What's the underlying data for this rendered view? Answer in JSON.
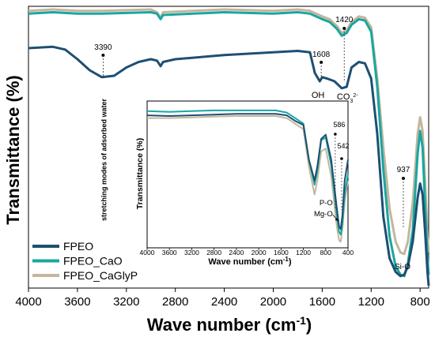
{
  "chart_data": [
    {
      "type": "line",
      "panel": "main",
      "xlabel": "Wave number (cm",
      "xlabel_sup": "-1",
      "xlabel_tail": ")",
      "ylabel": "Transmittance (%)",
      "xlim": [
        4000,
        730
      ],
      "x_reversed": true,
      "y_ticks_shown": false,
      "x_ticks": [
        4000,
        3600,
        3200,
        2800,
        2400,
        2000,
        1600,
        1200,
        800
      ],
      "x_tick_labels": [
        "4000",
        "3600",
        "3200",
        "2800",
        "2400",
        "2000",
        "1600",
        "1200",
        "800"
      ],
      "legend_position": "bottom-left",
      "series": [
        {
          "name": "FPEO",
          "color": "#1d4f73",
          "points": [
            [
              4000,
              0.86
            ],
            [
              3800,
              0.865
            ],
            [
              3700,
              0.855
            ],
            [
              3600,
              0.82
            ],
            [
              3500,
              0.78
            ],
            [
              3400,
              0.755
            ],
            [
              3300,
              0.76
            ],
            [
              3200,
              0.79
            ],
            [
              3100,
              0.81
            ],
            [
              3000,
              0.82
            ],
            [
              2950,
              0.815
            ],
            [
              2920,
              0.795
            ],
            [
              2900,
              0.81
            ],
            [
              2800,
              0.82
            ],
            [
              2400,
              0.835
            ],
            [
              2000,
              0.845
            ],
            [
              1800,
              0.85
            ],
            [
              1700,
              0.845
            ],
            [
              1660,
              0.77
            ],
            [
              1620,
              0.74
            ],
            [
              1600,
              0.755
            ],
            [
              1560,
              0.75
            ],
            [
              1500,
              0.74
            ],
            [
              1440,
              0.715
            ],
            [
              1400,
              0.72
            ],
            [
              1360,
              0.79
            ],
            [
              1300,
              0.81
            ],
            [
              1250,
              0.805
            ],
            [
              1200,
              0.75
            ],
            [
              1150,
              0.55
            ],
            [
              1100,
              0.25
            ],
            [
              1050,
              0.1
            ],
            [
              1000,
              0.05
            ],
            [
              960,
              0.035
            ],
            [
              930,
              0.04
            ],
            [
              900,
              0.07
            ],
            [
              860,
              0.16
            ],
            [
              820,
              0.32
            ],
            [
              800,
              0.37
            ],
            [
              780,
              0.33
            ],
            [
              760,
              0.2
            ],
            [
              740,
              0.05
            ],
            [
              730,
              0.0
            ]
          ]
        },
        {
          "name": "FPEO_CaO",
          "color": "#1aa6a0",
          "points": [
            [
              4000,
              0.985
            ],
            [
              3800,
              0.99
            ],
            [
              3600,
              0.985
            ],
            [
              3400,
              0.985
            ],
            [
              3000,
              0.99
            ],
            [
              2950,
              0.985
            ],
            [
              2920,
              0.965
            ],
            [
              2900,
              0.98
            ],
            [
              2400,
              0.99
            ],
            [
              2000,
              0.985
            ],
            [
              1800,
              0.99
            ],
            [
              1700,
              0.985
            ],
            [
              1600,
              0.965
            ],
            [
              1540,
              0.955
            ],
            [
              1480,
              0.93
            ],
            [
              1440,
              0.905
            ],
            [
              1400,
              0.915
            ],
            [
              1360,
              0.945
            ],
            [
              1300,
              0.965
            ],
            [
              1250,
              0.96
            ],
            [
              1200,
              0.92
            ],
            [
              1150,
              0.72
            ],
            [
              1100,
              0.42
            ],
            [
              1050,
              0.18
            ],
            [
              1000,
              0.07
            ],
            [
              960,
              0.04
            ],
            [
              930,
              0.035
            ],
            [
              900,
              0.08
            ],
            [
              860,
              0.2
            ],
            [
              820,
              0.48
            ],
            [
              800,
              0.56
            ],
            [
              780,
              0.5
            ],
            [
              760,
              0.3
            ],
            [
              740,
              0.1
            ],
            [
              730,
              0.04
            ]
          ]
        },
        {
          "name": "FPEO_CaGlyP",
          "color": "#c4b69c",
          "points": [
            [
              4000,
              0.995
            ],
            [
              3800,
              1.0
            ],
            [
              3600,
              0.995
            ],
            [
              3400,
              0.995
            ],
            [
              3000,
              1.0
            ],
            [
              2950,
              0.99
            ],
            [
              2920,
              0.97
            ],
            [
              2900,
              0.99
            ],
            [
              2400,
              1.0
            ],
            [
              2000,
              0.995
            ],
            [
              1800,
              1.0
            ],
            [
              1700,
              0.995
            ],
            [
              1600,
              0.975
            ],
            [
              1540,
              0.965
            ],
            [
              1480,
              0.94
            ],
            [
              1440,
              0.915
            ],
            [
              1400,
              0.925
            ],
            [
              1360,
              0.955
            ],
            [
              1300,
              0.975
            ],
            [
              1250,
              0.97
            ],
            [
              1200,
              0.935
            ],
            [
              1150,
              0.75
            ],
            [
              1100,
              0.5
            ],
            [
              1050,
              0.28
            ],
            [
              1000,
              0.16
            ],
            [
              960,
              0.12
            ],
            [
              930,
              0.115
            ],
            [
              900,
              0.16
            ],
            [
              860,
              0.3
            ],
            [
              820,
              0.55
            ],
            [
              800,
              0.61
            ],
            [
              780,
              0.56
            ],
            [
              760,
              0.38
            ],
            [
              740,
              0.18
            ],
            [
              730,
              0.12
            ]
          ]
        }
      ],
      "annotations": [
        {
          "text": "3390",
          "x": 3390
        },
        {
          "text": "1608",
          "x": 1608
        },
        {
          "text": "1420",
          "x": 1420
        },
        {
          "text": "937",
          "x": 937
        },
        {
          "text": "OH",
          "x": 1608
        },
        {
          "text": "CO",
          "x": 1420,
          "sub": "3",
          "sup": "2-"
        },
        {
          "text": "Si-O",
          "x": 937
        },
        {
          "text": "stretching modes of adsorbed water",
          "x": 3390
        }
      ]
    },
    {
      "type": "line",
      "panel": "inset",
      "xlabel": "Wave number (cm",
      "xlabel_sup": "-1",
      "xlabel_tail": ")",
      "ylabel": "Transmittance (%)",
      "xlim": [
        4000,
        400
      ],
      "x_reversed": true,
      "x_ticks": [
        4000,
        3600,
        3200,
        2800,
        2400,
        2000,
        1600,
        1200,
        800,
        400
      ],
      "x_tick_labels": [
        "4000",
        "3600",
        "3200",
        "2800",
        "2400",
        "2000",
        "1600",
        "1200",
        "800",
        "400"
      ],
      "series": [
        {
          "name": "FPEO",
          "color": "#1d4f73",
          "points": [
            [
              4000,
              0.92
            ],
            [
              3600,
              0.915
            ],
            [
              3200,
              0.92
            ],
            [
              2800,
              0.925
            ],
            [
              2400,
              0.93
            ],
            [
              2000,
              0.93
            ],
            [
              1700,
              0.93
            ],
            [
              1500,
              0.92
            ],
            [
              1350,
              0.88
            ],
            [
              1200,
              0.85
            ],
            [
              1100,
              0.6
            ],
            [
              1000,
              0.45
            ],
            [
              950,
              0.55
            ],
            [
              880,
              0.75
            ],
            [
              800,
              0.78
            ],
            [
              700,
              0.6
            ],
            [
              600,
              0.25
            ],
            [
              560,
              0.12
            ],
            [
              530,
              0.1
            ],
            [
              500,
              0.2
            ],
            [
              460,
              0.45
            ],
            [
              420,
              0.55
            ],
            [
              400,
              0.6
            ]
          ]
        },
        {
          "name": "FPEO_CaO",
          "color": "#1aa6a0",
          "points": [
            [
              4000,
              0.95
            ],
            [
              3600,
              0.945
            ],
            [
              3200,
              0.95
            ],
            [
              2800,
              0.955
            ],
            [
              2400,
              0.955
            ],
            [
              2000,
              0.955
            ],
            [
              1700,
              0.955
            ],
            [
              1500,
              0.94
            ],
            [
              1350,
              0.9
            ],
            [
              1200,
              0.86
            ],
            [
              1100,
              0.6
            ],
            [
              1000,
              0.42
            ],
            [
              950,
              0.52
            ],
            [
              880,
              0.74
            ],
            [
              800,
              0.76
            ],
            [
              700,
              0.56
            ],
            [
              600,
              0.2
            ],
            [
              560,
              0.08
            ],
            [
              530,
              0.06
            ],
            [
              500,
              0.14
            ],
            [
              460,
              0.35
            ],
            [
              420,
              0.45
            ],
            [
              400,
              0.5
            ]
          ]
        },
        {
          "name": "FPEO_CaGlyP",
          "color": "#c4b69c",
          "points": [
            [
              4000,
              0.9
            ],
            [
              3600,
              0.9
            ],
            [
              3200,
              0.905
            ],
            [
              2800,
              0.91
            ],
            [
              2400,
              0.915
            ],
            [
              2000,
              0.915
            ],
            [
              1700,
              0.915
            ],
            [
              1500,
              0.9
            ],
            [
              1350,
              0.86
            ],
            [
              1200,
              0.82
            ],
            [
              1100,
              0.55
            ],
            [
              1000,
              0.35
            ],
            [
              950,
              0.45
            ],
            [
              880,
              0.66
            ],
            [
              800,
              0.68
            ],
            [
              700,
              0.48
            ],
            [
              600,
              0.12
            ],
            [
              560,
              0.02
            ],
            [
              530,
              0.01
            ],
            [
              500,
              0.1
            ],
            [
              460,
              0.3
            ],
            [
              420,
              0.4
            ],
            [
              400,
              0.45
            ]
          ]
        }
      ],
      "annotations": [
        {
          "text": "586",
          "x": 586
        },
        {
          "text": "542",
          "x": 542
        },
        {
          "text": "P-O",
          "x": 560
        },
        {
          "text": "Mg-O",
          "x": 560
        }
      ]
    }
  ]
}
